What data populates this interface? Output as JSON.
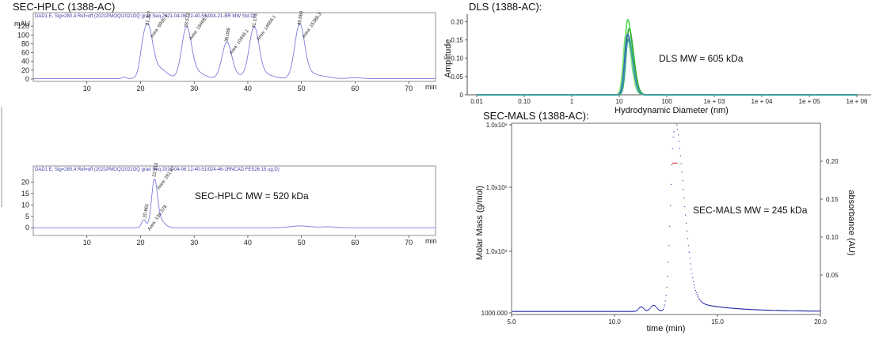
{
  "chart_data": [
    {
      "type": "line",
      "title": "SEC-HPLC (1388-AC)",
      "header": "DAD1 E, Sig=280,4 Ref=off (2021PMOQ\\2021OQ grad Seq 2021-04-06 12-40-51\\004-21-BR MW Std.D)",
      "ylabel": "mAU",
      "xlabel": "min",
      "xlim": [
        0,
        75
      ],
      "ylim": [
        0,
        140
      ],
      "x_ticks": [
        10,
        20,
        30,
        40,
        50,
        60,
        70
      ],
      "y_ticks": [
        0,
        20,
        40,
        60,
        80,
        100,
        120
      ],
      "peaks": [
        {
          "rt": 21.327,
          "rt_label": "21.327",
          "area_label": "Area: 6935.4",
          "height": 118
        },
        {
          "rt": 28.572,
          "rt_label": "28.572",
          "area_label": "Area: 19468.7",
          "height": 113
        },
        {
          "rt": 36.086,
          "rt_label": "36.086",
          "area_label": "Area: 10446.1",
          "height": 80
        },
        {
          "rt": 41.173,
          "rt_label": "41.173",
          "area_label": "Area: 14666.1",
          "height": 112
        },
        {
          "rt": 49.66,
          "rt_label": "49.660",
          "area_label": "Area: 15388.3",
          "height": 118
        }
      ],
      "line_color": "#7b7bdc"
    },
    {
      "type": "line",
      "header": "DAD1 E, Sig=280,4 Ref=off (2021PMOQ\\2021OQ grad Seq 2021-04-06 12-40-51\\024-46-1RNCAD FES26 15 ug.D)",
      "xlabel": "min",
      "xlim": [
        0,
        75
      ],
      "ylim": [
        -2,
        25
      ],
      "x_ticks": [
        10,
        20,
        30,
        40,
        50,
        60,
        70
      ],
      "y_ticks": [
        0,
        5,
        10,
        15,
        20
      ],
      "peaks": [
        {
          "rt": 20.861,
          "rt_label": "20.861",
          "area_label": "Area: 136.378",
          "height": 3.5
        },
        {
          "rt": 22.61,
          "rt_label": "22.610",
          "area_label": "Area: 261.67",
          "height": 21.5
        }
      ],
      "annotation": "SEC-HPLC MW = 520 kDa",
      "line_color": "#7b7bdc"
    },
    {
      "type": "line",
      "title": "DLS (1388-AC):",
      "xlabel": "Hydrodynamic Diameter (nm)",
      "ylabel": "Amplitude",
      "x_scale": "log",
      "xlim": [
        0.01,
        1000000
      ],
      "ylim": [
        0,
        0.22
      ],
      "x_tick_labels": [
        "0.01",
        "0.10",
        "1",
        "10",
        "100",
        "1e + 03",
        "1e + 04",
        "1e + 05",
        "1e + 06"
      ],
      "y_ticks": [
        "0",
        "0.05",
        "0.10",
        "0.15",
        "0.20"
      ],
      "series": [
        {
          "color": "#4cd94c",
          "peak_x": 15,
          "peak_y": 0.205
        },
        {
          "color": "#2fae2f",
          "peak_x": 16,
          "peak_y": 0.18
        },
        {
          "color": "#7be07b",
          "peak_x": 14,
          "peak_y": 0.17
        },
        {
          "color": "#3b5fc9",
          "peak_x": 15,
          "peak_y": 0.165
        },
        {
          "color": "#3aa0a0",
          "peak_x": 15.5,
          "peak_y": 0.15
        }
      ],
      "annotation": "DLS MW = 605 kDa"
    },
    {
      "type": "scatter",
      "title": "SEC-MALS (1388-AC):",
      "xlabel": "time (min)",
      "ylabel": "Molar Mass (g/mol)",
      "ylabel_right": "absorbance (AU)",
      "xlim": [
        5,
        20
      ],
      "x_tick_labels": [
        "5.0",
        "10.0",
        "15.0",
        "20.0"
      ],
      "y_left_scale": "log",
      "y_left_tick_labels": [
        "1000.000",
        "1.0x10⁴",
        "1.0x10⁵",
        "1.0x10⁶"
      ],
      "y_right_ticks": [
        "0.05",
        "0.10",
        "0.15",
        "0.20"
      ],
      "peak_time": 12.9,
      "molar_mass_segment": {
        "x": [
          12.8,
          13.05
        ],
        "value": 245000
      },
      "annotation": "SEC-MALS MW = 245 kDa",
      "trace_color": "#1a1aa0",
      "mass_color": "#e03030"
    }
  ]
}
